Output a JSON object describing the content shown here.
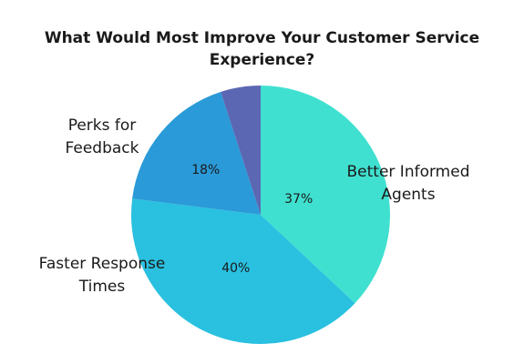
{
  "chart_data": {
    "type": "pie",
    "title_lines": [
      "What Would Most Improve Your Customer Service",
      "Experience?"
    ],
    "title": "What Would Most Improve Your Customer Service Experience?",
    "slices": [
      {
        "label_lines": [
          "Better Informed",
          "Agents"
        ],
        "value": 37,
        "value_label": "37%",
        "color": "#40e0d0"
      },
      {
        "label_lines": [
          "Faster Response",
          "Times"
        ],
        "value": 40,
        "value_label": "40%",
        "color": "#2ac0e0"
      },
      {
        "label_lines": [
          "Perks for",
          "Feedback"
        ],
        "value": 18,
        "value_label": "18%",
        "color": "#2a9ad8"
      },
      {
        "label_lines": [],
        "value": 5,
        "value_label": "",
        "color": "#5b67b3"
      }
    ]
  }
}
